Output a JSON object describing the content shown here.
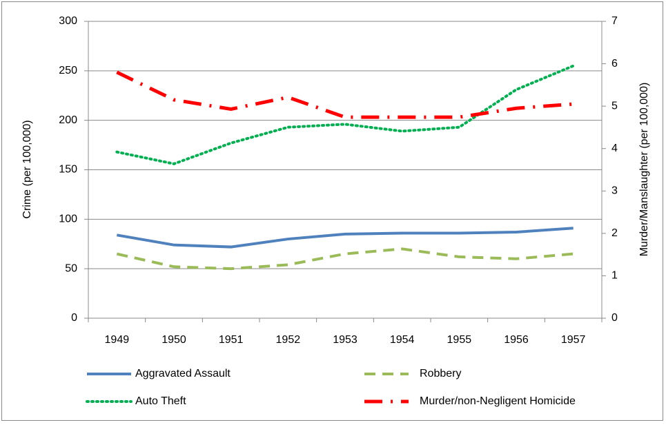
{
  "chart_data": {
    "type": "line",
    "categories": [
      "1949",
      "1950",
      "1951",
      "1952",
      "1953",
      "1954",
      "1955",
      "1956",
      "1957"
    ],
    "ylabel": "Crime (per 100,000)",
    "y2label": "Murder/Manslaughter (per 100,000)",
    "ylim": [
      0,
      300
    ],
    "yticks": [
      0,
      50,
      100,
      150,
      200,
      250,
      300
    ],
    "y2lim": [
      0,
      7
    ],
    "y2ticks": [
      0,
      1,
      2,
      3,
      4,
      5,
      6,
      7
    ],
    "grid": true,
    "legend": "bottom",
    "series": [
      {
        "name": "Aggravated Assault",
        "color": "#4f81bd",
        "style": "solid",
        "values": [
          84,
          74,
          72,
          80,
          85,
          86,
          86,
          87,
          91
        ]
      },
      {
        "name": "Robbery",
        "color": "#9bbb59",
        "style": "dash",
        "values": [
          65,
          52,
          50,
          54,
          65,
          70,
          62,
          60,
          65
        ]
      },
      {
        "name": "Auto Theft",
        "color": "#00b050",
        "style": "dot",
        "values": [
          168,
          156,
          177,
          193,
          196,
          189,
          193,
          231,
          255
        ]
      },
      {
        "name": "Murder/non-Negligent  Homicide",
        "color": "#ff0000",
        "style": "dashdot",
        "axis": "y2",
        "values": [
          5.8,
          5.15,
          4.93,
          5.21,
          4.74,
          4.74,
          4.74,
          4.95,
          5.05
        ]
      }
    ]
  }
}
